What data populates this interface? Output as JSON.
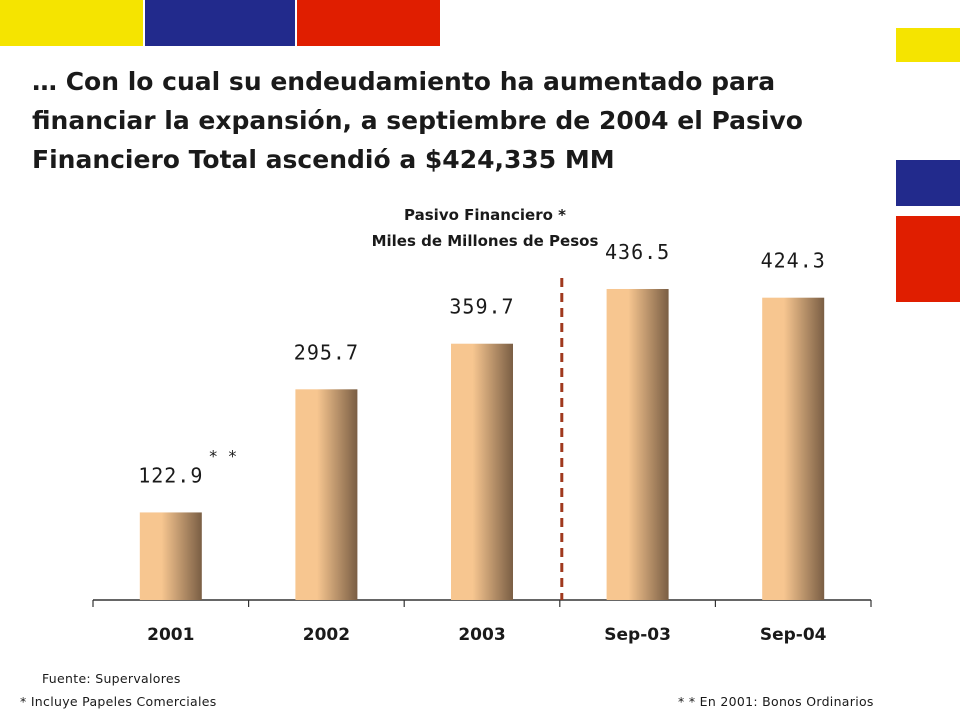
{
  "headline": "… Con lo cual su endeudamiento ha aumentado para financiar la expansión, a septiembre de 2004 el Pasivo Financiero Total ascendió a $424,335 MM",
  "chart_data": {
    "type": "bar",
    "title": "Pasivo Financiero *",
    "subtitle": "Miles de Millones de Pesos",
    "categories": [
      "2001",
      "2002",
      "2003",
      "Sep-03",
      "Sep-04"
    ],
    "values": [
      122.9,
      295.7,
      359.7,
      436.5,
      424.3
    ],
    "data_labels": [
      "122.9",
      "295.7",
      "359.7",
      "436.5",
      "424.3"
    ],
    "annotation": {
      "category": "2001",
      "text": "* *"
    },
    "divider_between": [
      "2003",
      "Sep-03"
    ],
    "ylim": [
      0,
      480
    ],
    "grid": false,
    "colors": {
      "bar_light": "#f7c690",
      "bar_dark": "#7a5e44",
      "divider": "#a0391e"
    }
  },
  "footnotes": {
    "source": "Fuente: Supervalores",
    "note1": "* Incluye Papeles Comerciales",
    "note2": "* * En 2001: Bonos Ordinarios"
  },
  "decor": {
    "colors": [
      "#f5e400",
      "#222a8c",
      "#e01e00"
    ]
  }
}
